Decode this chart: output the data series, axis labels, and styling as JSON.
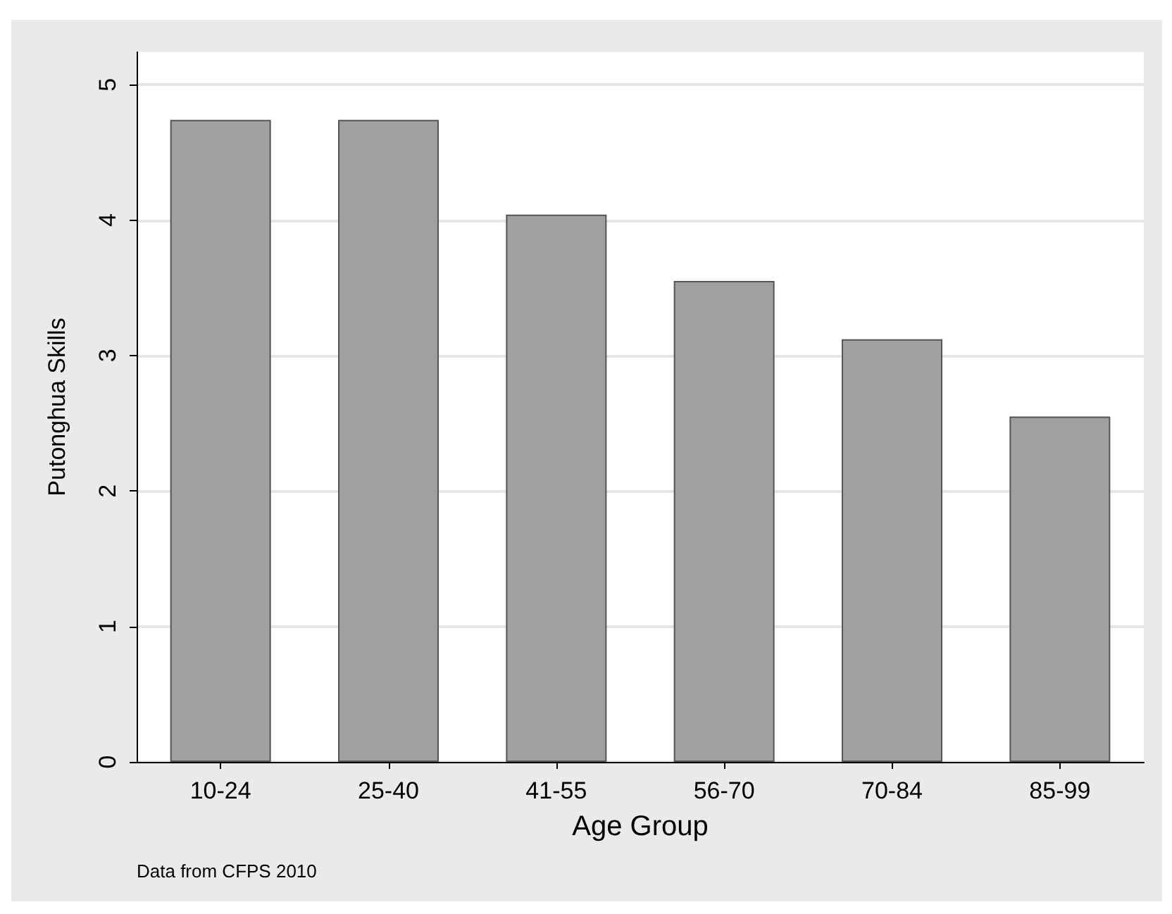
{
  "chart_data": {
    "type": "bar",
    "xlabel": "Age Group",
    "ylabel": "Putonghua Skills",
    "categories": [
      "10-24",
      "25-40",
      "41-55",
      "56-70",
      "70-84",
      "85-99"
    ],
    "values": [
      4.74,
      4.74,
      4.04,
      3.55,
      3.12,
      2.55
    ],
    "color": "#a0a0a0",
    "ylim": [
      0,
      5.24
    ],
    "yticks": [
      0,
      1,
      2,
      3,
      4,
      5
    ],
    "grid": "y",
    "annotations": [
      "Data from CFPS 2010"
    ]
  }
}
